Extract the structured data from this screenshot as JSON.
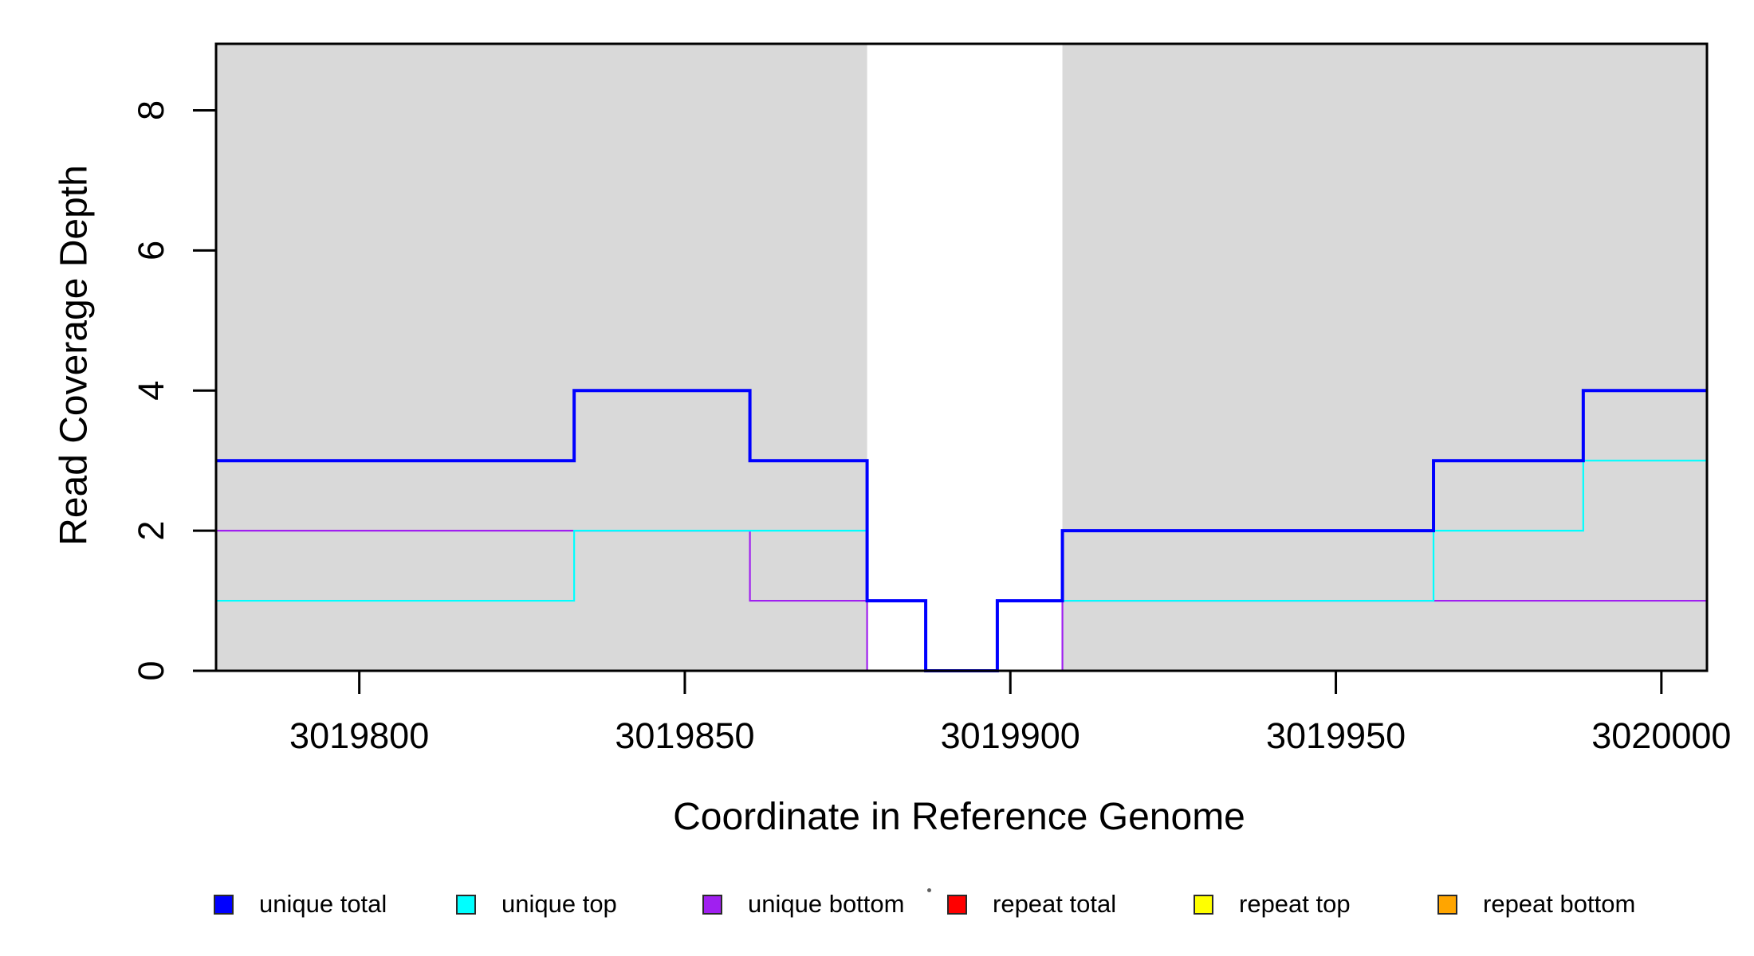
{
  "chart_data": {
    "type": "line",
    "step": true,
    "title": "",
    "xlabel": "Coordinate in Reference Genome",
    "ylabel": "Read Coverage Depth",
    "xlim": [
      3019778,
      3020007
    ],
    "ylim": [
      0,
      8.95
    ],
    "x_ticks": [
      3019800,
      3019850,
      3019900,
      3019950,
      3020000
    ],
    "x_tick_labels": [
      "3019800",
      "3019850",
      "3019900",
      "3019950",
      "3020000"
    ],
    "y_ticks": [
      0,
      2,
      4,
      6,
      8
    ],
    "y_tick_labels": [
      "0",
      "2",
      "4",
      "6",
      "8"
    ],
    "grid": false,
    "legend_position": "bottom",
    "plot_background": "#ffffff",
    "band_color": "#d9d9d9",
    "background_bands": [
      {
        "x0": 3019778,
        "x1": 3019878
      },
      {
        "x0": 3019908,
        "x1": 3020007
      }
    ],
    "gap_band": {
      "x0": 3019878,
      "x1": 3019908
    },
    "series": [
      {
        "name": "unique total",
        "color": "#0000ff",
        "width": 4,
        "points": [
          [
            3019778,
            3
          ],
          [
            3019833,
            4
          ],
          [
            3019860,
            3
          ],
          [
            3019878,
            1
          ],
          [
            3019887,
            0
          ],
          [
            3019898,
            1
          ],
          [
            3019908,
            2
          ],
          [
            3019965,
            3
          ],
          [
            3019988,
            4
          ],
          [
            3020007,
            4
          ]
        ]
      },
      {
        "name": "unique top",
        "color": "#00ffff",
        "width": 2.2,
        "points": [
          [
            3019778,
            1
          ],
          [
            3019833,
            2
          ],
          [
            3019878,
            1
          ],
          [
            3019887,
            0
          ],
          [
            3019898,
            1
          ],
          [
            3019965,
            2
          ],
          [
            3019988,
            3
          ],
          [
            3020007,
            3
          ]
        ]
      },
      {
        "name": "unique bottom",
        "color": "#a020f0",
        "width": 2.2,
        "points": [
          [
            3019778,
            2
          ],
          [
            3019860,
            1
          ],
          [
            3019878,
            0
          ],
          [
            3019908,
            1
          ],
          [
            3020007,
            1
          ]
        ]
      },
      {
        "name": "repeat total",
        "color": "#ff0000",
        "width": 2.2,
        "points": [
          [
            3019778,
            0
          ],
          [
            3020007,
            0
          ]
        ]
      },
      {
        "name": "repeat top",
        "color": "#ffff00",
        "width": 2.2,
        "points": [
          [
            3019778,
            0
          ],
          [
            3020007,
            0
          ]
        ]
      },
      {
        "name": "repeat bottom",
        "color": "#ffa500",
        "width": 3,
        "points": [
          [
            3019778,
            0
          ],
          [
            3020007,
            0
          ]
        ]
      }
    ]
  }
}
